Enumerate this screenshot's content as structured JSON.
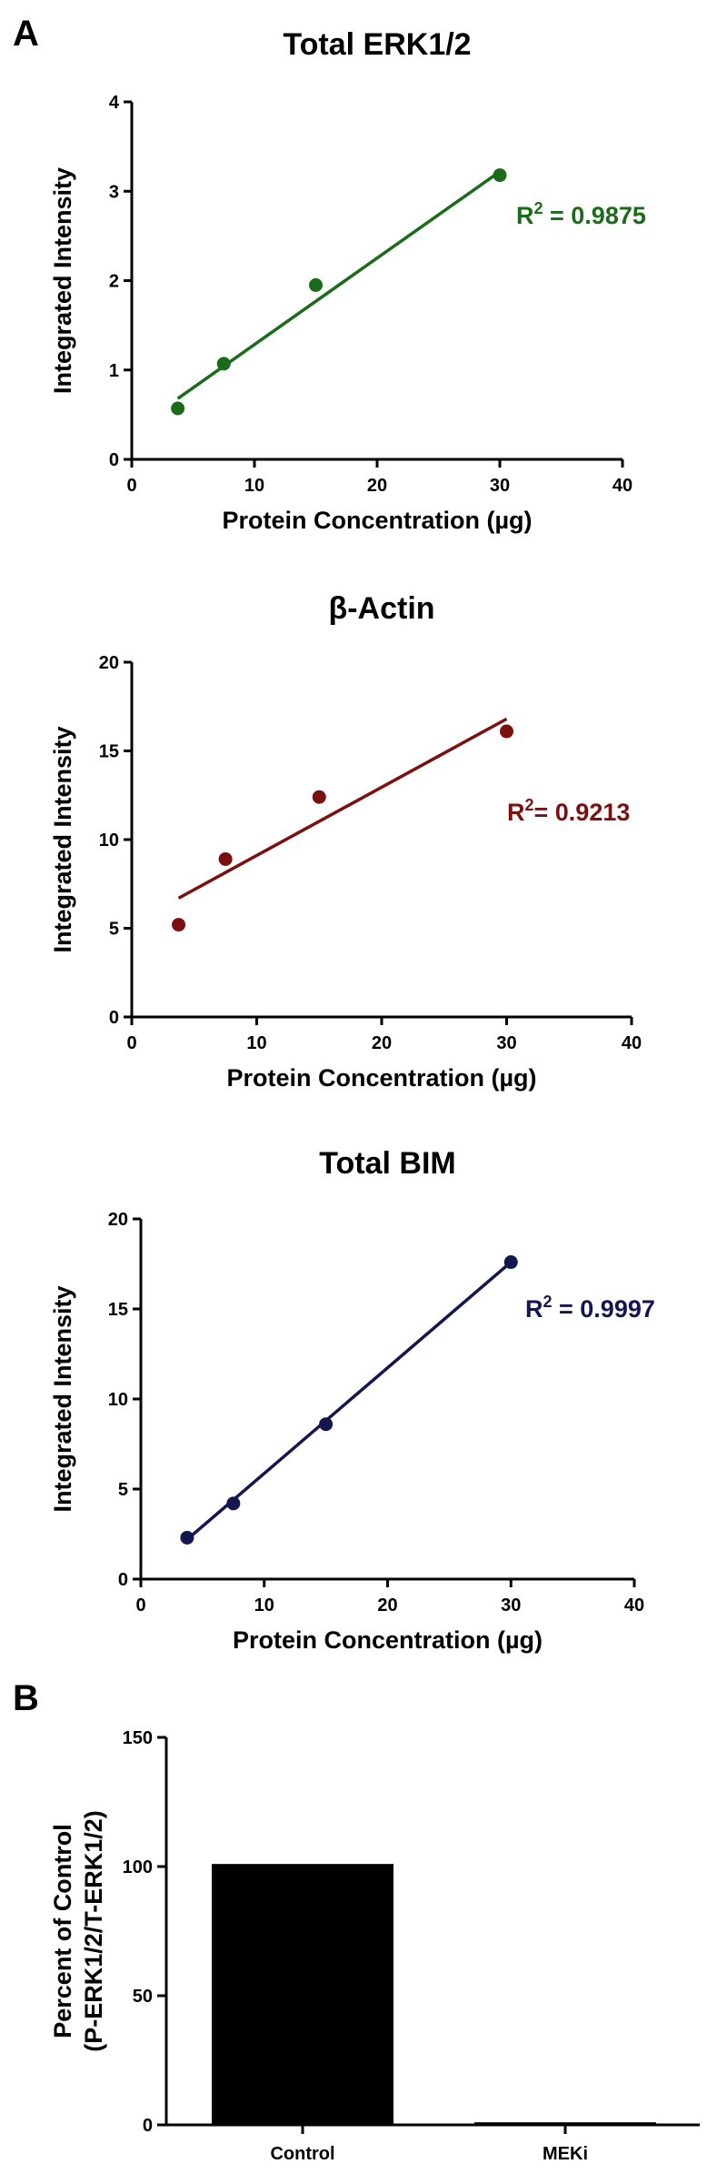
{
  "panels": {
    "a_label": "A",
    "b_label": "B"
  },
  "chart_data": [
    {
      "type": "scatter",
      "title": "Total ERK1/2",
      "xlabel": "Protein Concentration (µg)",
      "ylabel": "Integrated Intensity",
      "xlim": [
        0,
        40
      ],
      "ylim": [
        0,
        4
      ],
      "xticks": [
        0,
        10,
        20,
        30,
        40
      ],
      "yticks": [
        0,
        1,
        2,
        3,
        4
      ],
      "x": [
        3.75,
        7.5,
        15,
        30
      ],
      "y": [
        0.57,
        1.07,
        1.95,
        3.18
      ],
      "fit": {
        "x1": 3.75,
        "y1": 0.68,
        "x2": 30,
        "y2": 3.22
      },
      "r2": {
        "prefix": "R",
        "sup": "2",
        "text": " = 0.9875"
      },
      "color": "#1a6b1a"
    },
    {
      "type": "scatter",
      "title": "β-Actin",
      "xlabel": "Protein Concentration (µg)",
      "ylabel": "Integrated Intensity",
      "xlim": [
        0,
        40
      ],
      "ylim": [
        0,
        20
      ],
      "xticks": [
        0,
        10,
        20,
        30,
        40
      ],
      "yticks": [
        0,
        5,
        10,
        15,
        20
      ],
      "x": [
        3.75,
        7.5,
        15,
        30
      ],
      "y": [
        5.2,
        8.9,
        12.4,
        16.1
      ],
      "fit": {
        "x1": 3.75,
        "y1": 6.7,
        "x2": 30,
        "y2": 16.8
      },
      "r2": {
        "prefix": "R",
        "sup": "2",
        "text": "= 0.9213"
      },
      "color": "#7a1010"
    },
    {
      "type": "scatter",
      "title": "Total BIM",
      "xlabel": "Protein Concentration (µg)",
      "ylabel": "Integrated Intensity",
      "xlim": [
        0,
        40
      ],
      "ylim": [
        0,
        20
      ],
      "xticks": [
        0,
        10,
        20,
        30,
        40
      ],
      "yticks": [
        0,
        5,
        10,
        15,
        20
      ],
      "x": [
        3.75,
        7.5,
        15,
        30
      ],
      "y": [
        2.3,
        4.2,
        8.6,
        17.6
      ],
      "fit": {
        "x1": 3.75,
        "y1": 2.2,
        "x2": 30,
        "y2": 17.6
      },
      "r2": {
        "prefix": "R",
        "sup": "2",
        "text": " = 0.9997"
      },
      "color": "#15154f"
    },
    {
      "type": "bar",
      "title": "",
      "ylabel_line1": "Percent of Control",
      "ylabel_line2": "(P-ERK1/2/T-ERK1/2)",
      "categories": [
        "Control",
        "MEKi"
      ],
      "values": [
        101,
        1
      ],
      "ylim": [
        0,
        150
      ],
      "yticks": [
        0,
        50,
        100,
        150
      ],
      "color": "#000000"
    }
  ]
}
